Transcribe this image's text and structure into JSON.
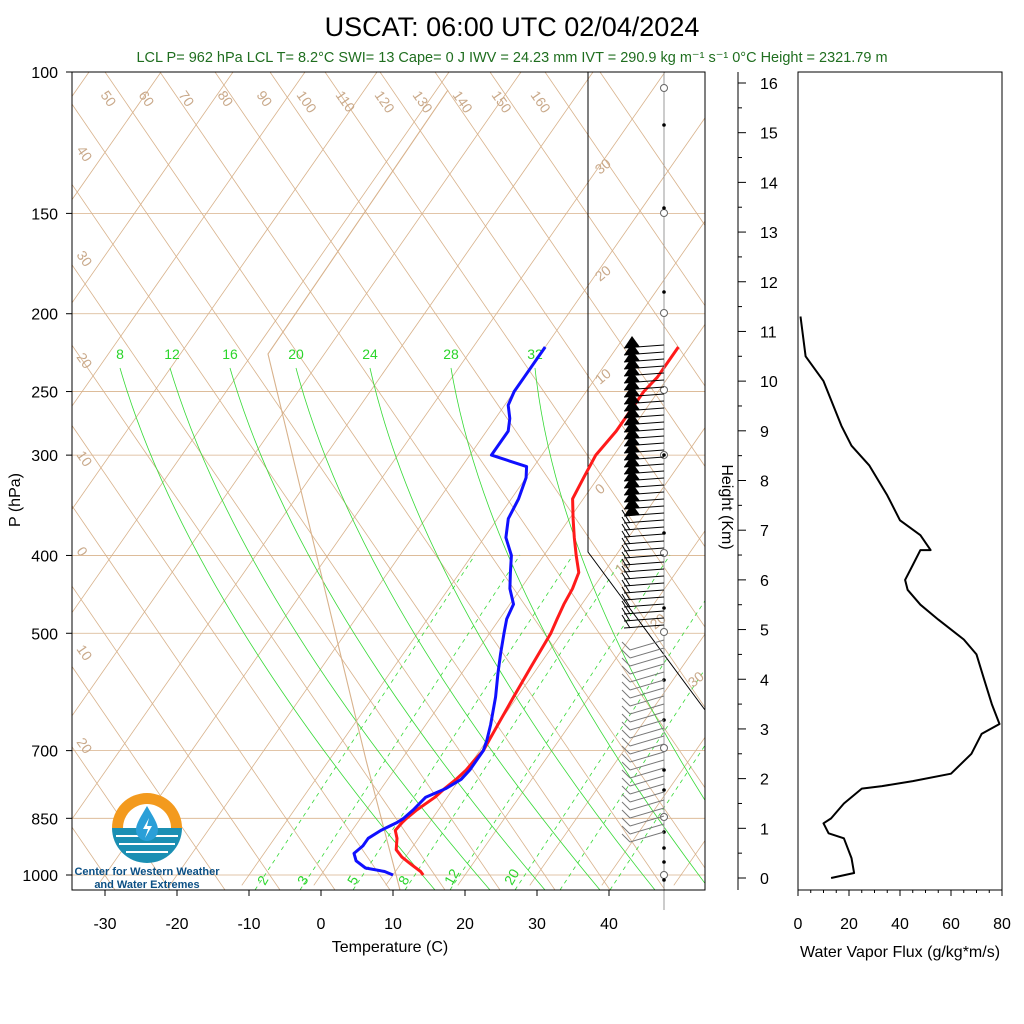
{
  "header": {
    "title": "USCAT: 06:00 UTC 02/04/2024",
    "subtitle": "LCL P= 962 hPa  LCL T= 8.2°C  SWI= 13  Cape= 0 J  IWV = 24.23 mm  IVT = 290.9 kg m⁻¹ s⁻¹  0°C Height = 2321.79 m"
  },
  "logo": {
    "line1": "Center for Western Weather",
    "line2": "and Water Extremes",
    "colors": {
      "sun": "#f39a1e",
      "sea": "#1b8fb3",
      "drop": "#2a9fd8",
      "text": "#0b4f84"
    }
  },
  "colors": {
    "temperature": "#ff1a1a",
    "dewpoint": "#1010ff",
    "isotherm": "#d8b28c",
    "mixing_ratio": "#36d936",
    "grid": "#d8b28c",
    "flux": "#000000"
  },
  "chart_data": [
    {
      "type": "line",
      "name": "skew-t",
      "xlabel": "Temperature (C)",
      "ylabel": "P (hPa)",
      "xlim": [
        -35,
        47
      ],
      "ylim": [
        1030,
        100
      ],
      "y_scale": "log",
      "x_ticks": [
        -30,
        -20,
        -10,
        0,
        10,
        20,
        30,
        40
      ],
      "y_ticks": [
        100,
        150,
        200,
        250,
        300,
        400,
        500,
        700,
        850,
        1000
      ],
      "isotherm_labels_top": [
        "50",
        "60",
        "70",
        "80",
        "90",
        "100",
        "110",
        "120",
        "130",
        "140",
        "150",
        "160"
      ],
      "isotherm_labels_left": [
        "40",
        "30",
        "20",
        "10",
        "0",
        "10",
        "20"
      ],
      "isotherm_labels_right": [
        "30",
        "20",
        "10",
        "0",
        "10",
        "20",
        "30"
      ],
      "mixing_ratio_labels_top": [
        "8",
        "12",
        "16",
        "20",
        "24",
        "28",
        "32"
      ],
      "mixing_ratio_labels_bottom": [
        "2",
        "3",
        "5",
        "8",
        "12",
        "20"
      ],
      "series": [
        {
          "name": "Temperature",
          "points": [
            [
              1000,
              14.2
            ],
            [
              990,
              13.5
            ],
            [
              970,
              11.5
            ],
            [
              950,
              9.5
            ],
            [
              930,
              8.0
            ],
            [
              900,
              7.0
            ],
            [
              880,
              6.0
            ],
            [
              860,
              6.2
            ],
            [
              850,
              6.4
            ],
            [
              830,
              7.0
            ],
            [
              800,
              8.3
            ],
            [
              780,
              8.8
            ],
            [
              760,
              9.5
            ],
            [
              740,
              10.0
            ],
            [
              720,
              10.2
            ],
            [
              700,
              10.5
            ],
            [
              650,
              10.0
            ],
            [
              600,
              9.5
            ],
            [
              550,
              9.0
            ],
            [
              500,
              8.5
            ],
            [
              480,
              8.0
            ],
            [
              460,
              7.5
            ],
            [
              440,
              7.2
            ],
            [
              420,
              6.5
            ],
            [
              400,
              4.5
            ],
            [
              380,
              2.5
            ],
            [
              360,
              0.5
            ],
            [
              340,
              -1.5
            ],
            [
              320,
              -2.0
            ],
            [
              300,
              -2.5
            ],
            [
              280,
              -2.0
            ],
            [
              260,
              -2.0
            ],
            [
              250,
              -2.0
            ],
            [
              240,
              -1.5
            ],
            [
              230,
              -1.5
            ],
            [
              220,
              -1.5
            ]
          ]
        },
        {
          "name": "Dewpoint",
          "points": [
            [
              1000,
              10.0
            ],
            [
              990,
              8.5
            ],
            [
              980,
              5.5
            ],
            [
              960,
              3.5
            ],
            [
              940,
              2.5
            ],
            [
              920,
              3.0
            ],
            [
              900,
              3.0
            ],
            [
              880,
              4.0
            ],
            [
              860,
              5.5
            ],
            [
              850,
              6.0
            ],
            [
              830,
              6.5
            ],
            [
              800,
              7.0
            ],
            [
              780,
              9.0
            ],
            [
              760,
              10.2
            ],
            [
              740,
              10.5
            ],
            [
              720,
              10.5
            ],
            [
              700,
              10.5
            ],
            [
              680,
              10.0
            ],
            [
              650,
              9.0
            ],
            [
              600,
              7.0
            ],
            [
              560,
              5.0
            ],
            [
              530,
              3.5
            ],
            [
              500,
              2.0
            ],
            [
              480,
              1.0
            ],
            [
              460,
              0.5
            ],
            [
              440,
              -1.5
            ],
            [
              420,
              -3.0
            ],
            [
              400,
              -4.5
            ],
            [
              380,
              -7.0
            ],
            [
              360,
              -8.5
            ],
            [
              340,
              -9.0
            ],
            [
              320,
              -10.0
            ],
            [
              310,
              -11.0
            ],
            [
              300,
              -17.0
            ],
            [
              290,
              -17.0
            ],
            [
              280,
              -17.0
            ],
            [
              270,
              -18.0
            ],
            [
              260,
              -19.5
            ],
            [
              250,
              -20.0
            ],
            [
              240,
              -20.0
            ],
            [
              230,
              -20.0
            ],
            [
              220,
              -20.0
            ]
          ]
        }
      ],
      "wind_barbs": "displayed for each pressure level from 1000 hPa to ~220 hPa"
    },
    {
      "type": "line",
      "name": "water-vapor-flux",
      "xlabel": "Water Vapor Flux (g/kg*m/s)",
      "ylabel": "Height (Km)",
      "xlim": [
        0,
        80
      ],
      "ylim": [
        -0.2,
        16.3
      ],
      "x_ticks": [
        0,
        20,
        40,
        60,
        80
      ],
      "y_ticks": [
        0,
        1,
        2,
        3,
        4,
        5,
        6,
        7,
        8,
        9,
        10,
        11,
        12,
        13,
        14,
        15,
        16
      ],
      "x": [
        13,
        22,
        21,
        18,
        12,
        10,
        13,
        18,
        25,
        33,
        45,
        60,
        68,
        72,
        79,
        76,
        73,
        70,
        65,
        55,
        48,
        43,
        42,
        45,
        48,
        52,
        48,
        40,
        35,
        28,
        21,
        17,
        10,
        3,
        1
      ],
      "y": [
        0.0,
        0.1,
        0.4,
        0.8,
        0.9,
        1.1,
        1.2,
        1.5,
        1.8,
        1.85,
        1.95,
        2.1,
        2.5,
        2.9,
        3.1,
        3.5,
        4.0,
        4.5,
        4.8,
        5.2,
        5.5,
        5.8,
        6.0,
        6.3,
        6.6,
        6.6,
        6.9,
        7.2,
        7.7,
        8.3,
        8.7,
        9.1,
        10.0,
        10.5,
        11.3
      ]
    }
  ]
}
